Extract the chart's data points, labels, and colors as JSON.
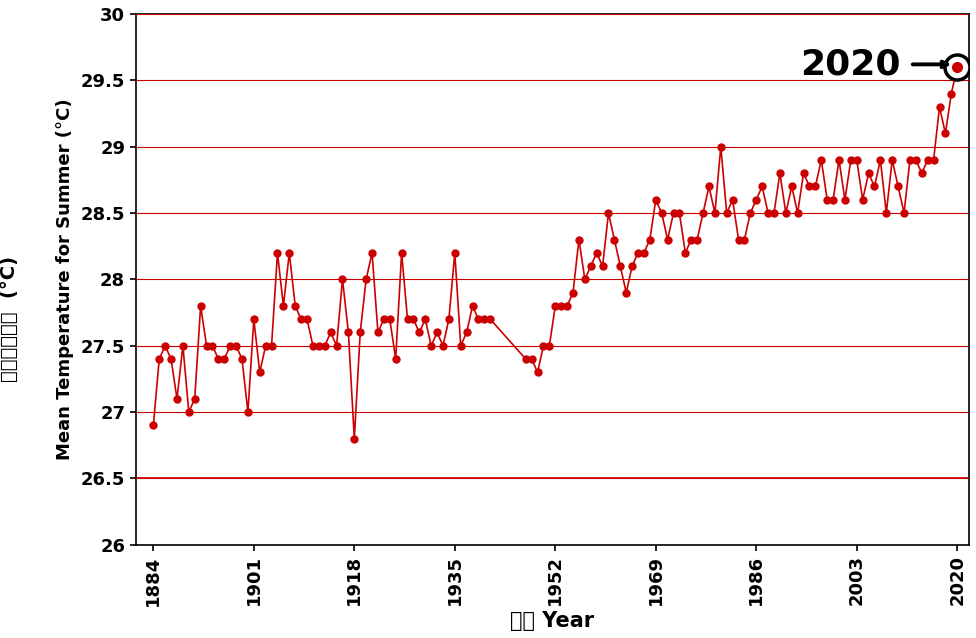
{
  "years": [
    1884,
    1885,
    1886,
    1887,
    1888,
    1889,
    1890,
    1891,
    1892,
    1893,
    1894,
    1895,
    1896,
    1897,
    1898,
    1899,
    1900,
    1901,
    1902,
    1903,
    1904,
    1905,
    1906,
    1907,
    1908,
    1909,
    1910,
    1911,
    1912,
    1913,
    1914,
    1915,
    1916,
    1917,
    1918,
    1919,
    1920,
    1921,
    1922,
    1923,
    1924,
    1925,
    1926,
    1927,
    1928,
    1929,
    1930,
    1931,
    1932,
    1933,
    1934,
    1935,
    1936,
    1937,
    1938,
    1939,
    1940,
    1941,
    1947,
    1948,
    1949,
    1950,
    1951,
    1952,
    1953,
    1954,
    1955,
    1956,
    1957,
    1958,
    1959,
    1960,
    1961,
    1962,
    1963,
    1964,
    1965,
    1966,
    1967,
    1968,
    1969,
    1970,
    1971,
    1972,
    1973,
    1974,
    1975,
    1976,
    1977,
    1978,
    1979,
    1980,
    1981,
    1982,
    1983,
    1984,
    1985,
    1986,
    1987,
    1988,
    1989,
    1990,
    1991,
    1992,
    1993,
    1994,
    1995,
    1996,
    1997,
    1998,
    1999,
    2000,
    2001,
    2002,
    2003,
    2004,
    2005,
    2006,
    2007,
    2008,
    2009,
    2010,
    2011,
    2012,
    2013,
    2014,
    2015,
    2016,
    2017,
    2018,
    2019,
    2020
  ],
  "temps": [
    26.9,
    27.4,
    27.5,
    27.4,
    27.1,
    27.5,
    27.0,
    27.1,
    27.8,
    27.5,
    27.5,
    27.4,
    27.4,
    27.5,
    27.5,
    27.4,
    27.0,
    27.7,
    27.3,
    27.5,
    27.5,
    28.2,
    27.8,
    28.2,
    27.8,
    27.7,
    27.7,
    27.5,
    27.5,
    27.5,
    27.6,
    27.5,
    28.0,
    27.6,
    26.8,
    27.6,
    28.0,
    28.2,
    27.6,
    27.7,
    27.7,
    27.4,
    28.2,
    27.7,
    27.7,
    27.6,
    27.7,
    27.5,
    27.6,
    27.5,
    27.7,
    28.2,
    27.5,
    27.6,
    27.8,
    27.7,
    27.7,
    27.7,
    27.4,
    27.4,
    27.3,
    27.5,
    27.5,
    27.8,
    27.8,
    27.8,
    27.9,
    28.3,
    28.0,
    28.1,
    28.2,
    28.1,
    28.5,
    28.3,
    28.1,
    27.9,
    28.1,
    28.2,
    28.2,
    28.3,
    28.6,
    28.5,
    28.3,
    28.5,
    28.5,
    28.2,
    28.3,
    28.3,
    28.5,
    28.7,
    28.5,
    29.0,
    28.5,
    28.6,
    28.3,
    28.3,
    28.5,
    28.6,
    28.7,
    28.5,
    28.5,
    28.8,
    28.5,
    28.7,
    28.5,
    28.8,
    28.7,
    28.7,
    28.9,
    28.6,
    28.6,
    28.9,
    28.6,
    28.9,
    28.9,
    28.6,
    28.8,
    28.7,
    28.9,
    28.5,
    28.9,
    28.7,
    28.5,
    28.9,
    28.9,
    28.8,
    28.9,
    28.9,
    29.3,
    29.1,
    29.4,
    29.6
  ],
  "line_color": "#cc0000",
  "marker_color": "#cc0000",
  "highlight_year": 2020,
  "highlight_value": 29.6,
  "ref_line_y": 26.5,
  "ref_line_color": "#cc0000",
  "ylim": [
    26.0,
    30.0
  ],
  "ytick_vals": [
    26.0,
    26.5,
    27.0,
    27.5,
    28.0,
    28.5,
    29.0,
    29.5,
    30.0
  ],
  "ytick_labels": [
    "26",
    "26.5",
    "27",
    "27.5",
    "28",
    "28.5",
    "29",
    "29.5",
    "30"
  ],
  "xticks": [
    1884,
    1901,
    1918,
    1935,
    1952,
    1969,
    1986,
    2003,
    2020
  ],
  "xlabel": "年份 Year",
  "ylabel_cn": "夏季平均氣溫  (°C)",
  "ylabel_en": "Mean Temperature for Summer (°C)",
  "annotation_text": "2020",
  "axis_fontsize": 13,
  "tick_fontsize": 13,
  "background_color": "#ffffff",
  "grid_color": "#cc0000",
  "annotation_fontsize": 26
}
